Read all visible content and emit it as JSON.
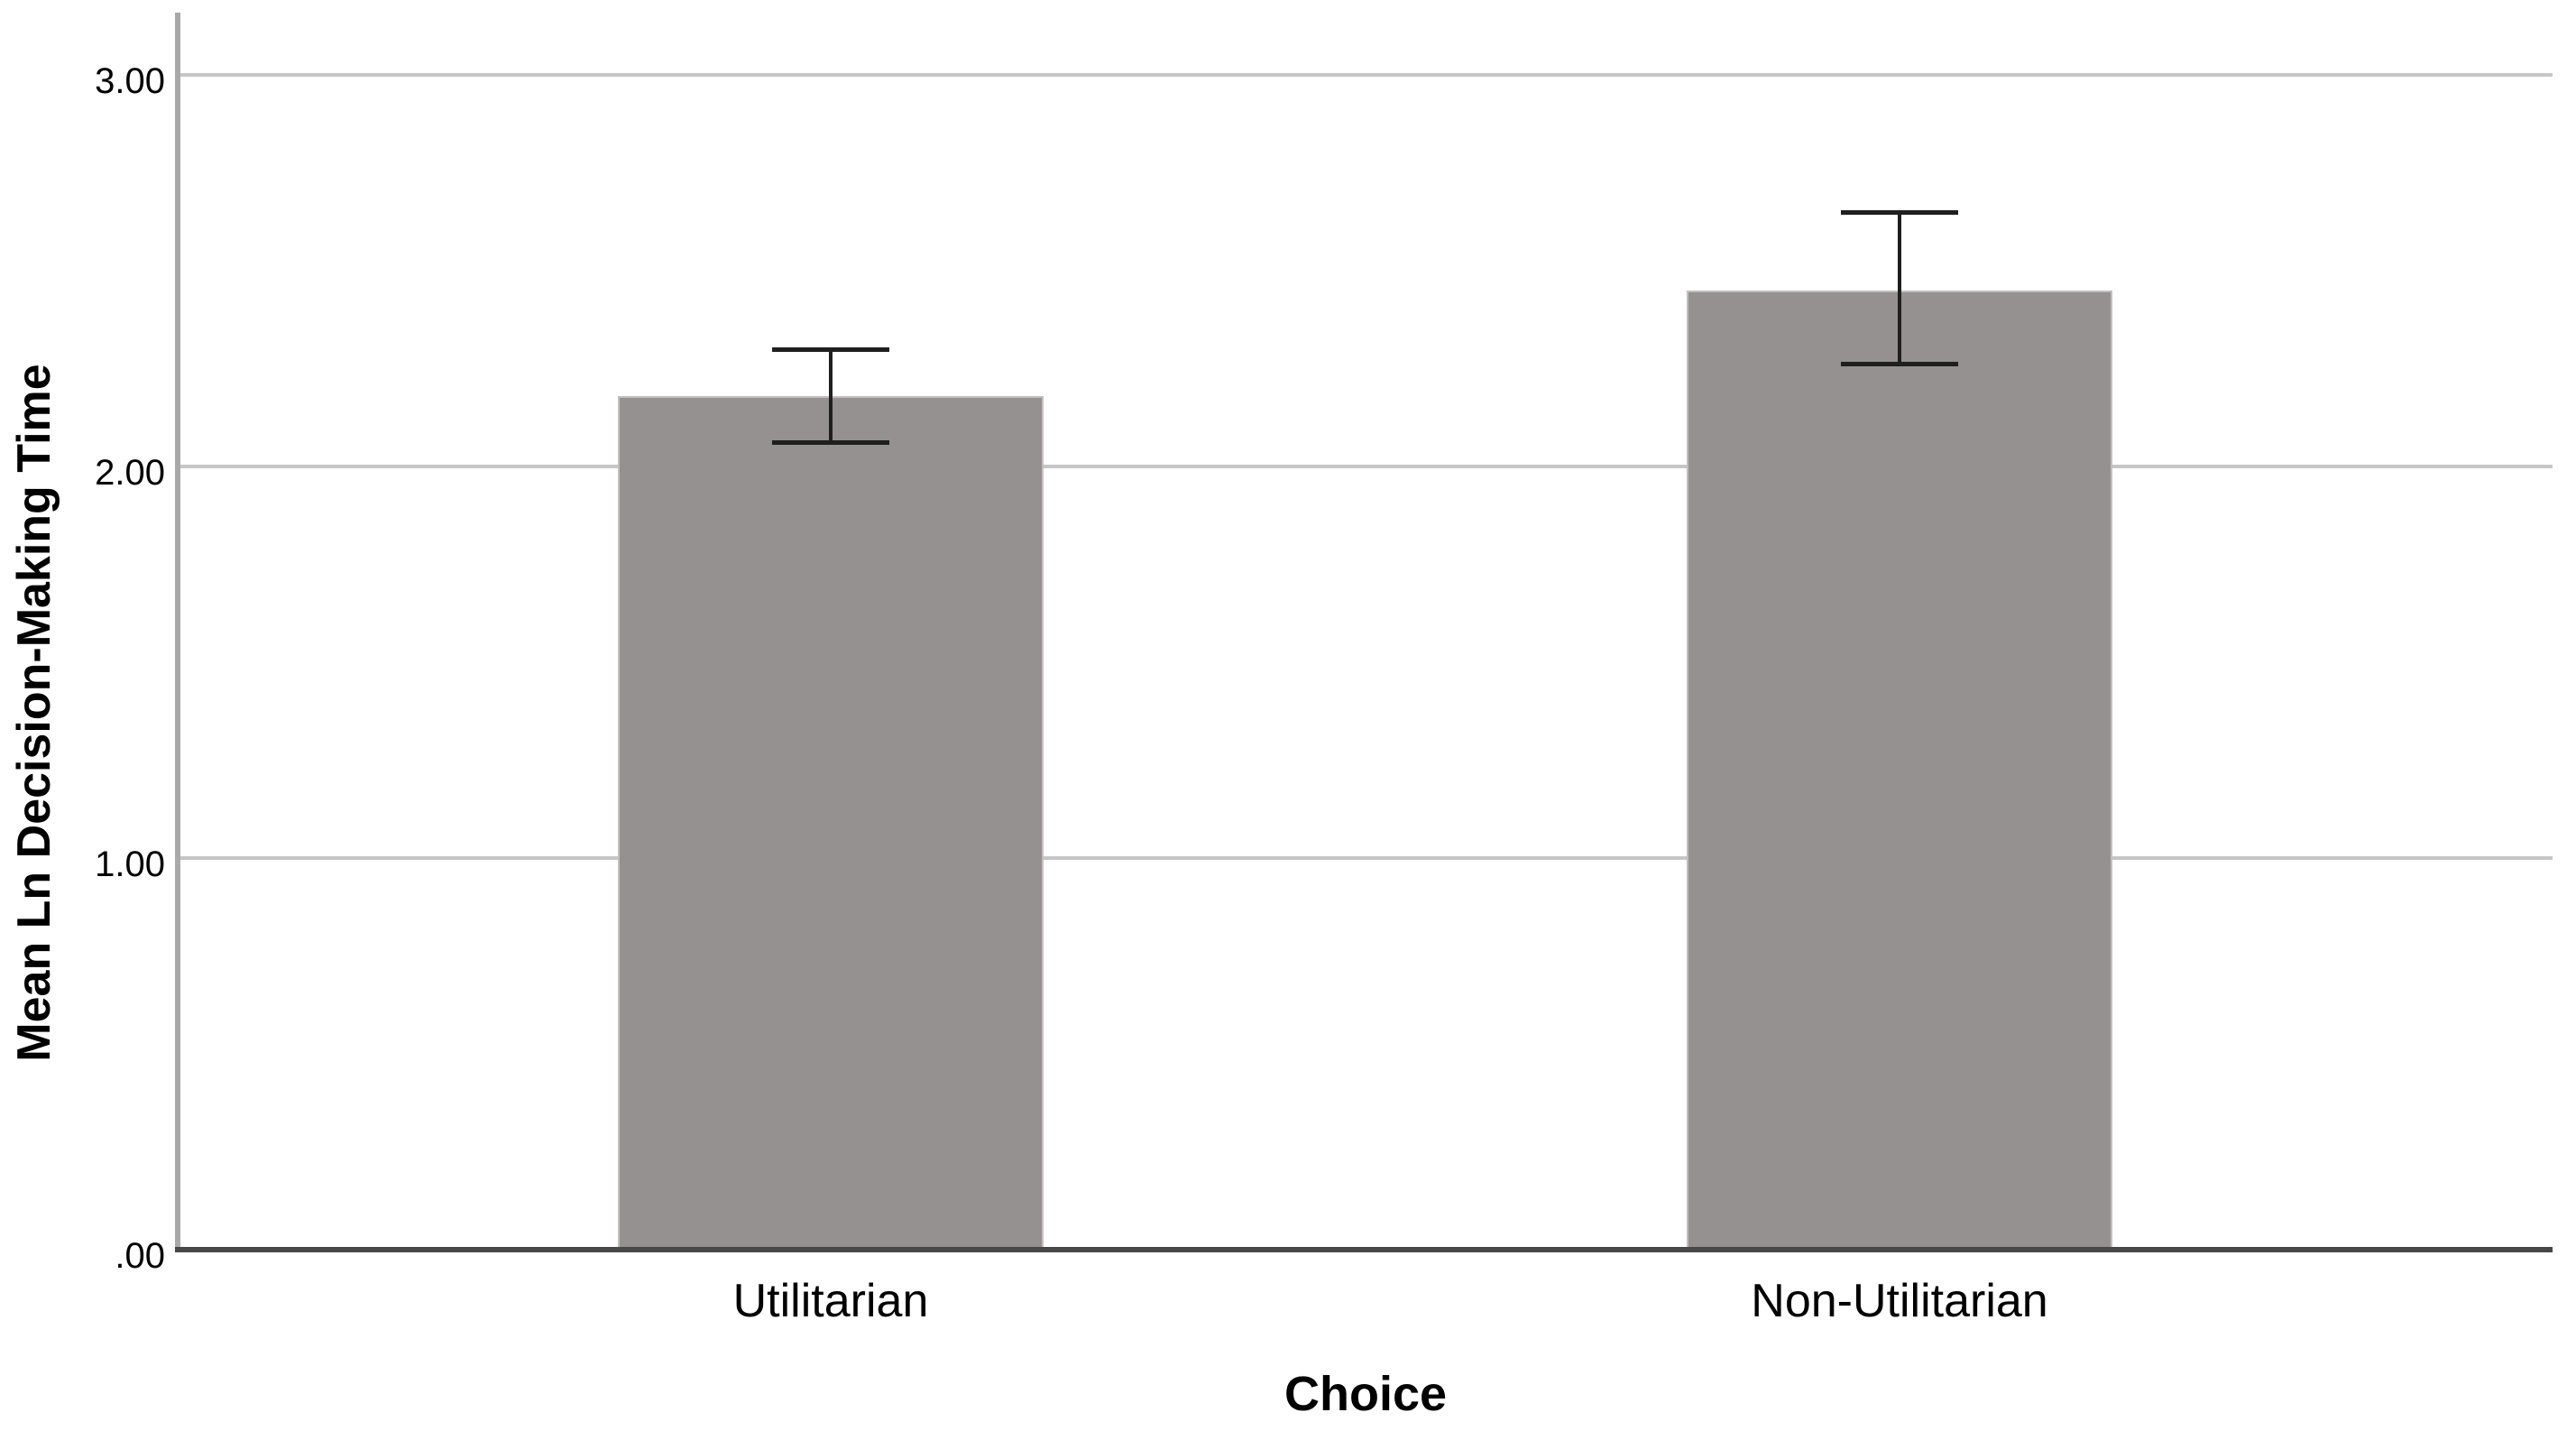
{
  "chart_data": {
    "type": "bar",
    "title": "",
    "categories": [
      "Utilitarian",
      "Non-Utilitarian"
    ],
    "values": [
      2.18,
      2.45
    ],
    "error_bars": [
      {
        "low": 2.06,
        "high": 2.3
      },
      {
        "low": 2.26,
        "high": 2.65
      }
    ],
    "xlabel": "Choice",
    "ylabel": "Mean Ln Decision-Making Time",
    "ylim": [
      0,
      3.16
    ],
    "yticks": [
      {
        "value": 0,
        "label": ".00"
      },
      {
        "value": 1,
        "label": "1.00"
      },
      {
        "value": 2,
        "label": "2.00"
      },
      {
        "value": 3,
        "label": "3.00"
      }
    ],
    "grid": "horizontal",
    "legend": "none",
    "colors": {
      "background": "#ffffff",
      "bar_fill": "#949190",
      "bar_border": "#c2bfbe",
      "error_bar": "#1f1f1f",
      "gridline": "#c6c6c6",
      "y_axis_line": "#a9a9a9",
      "x_axis_line": "#474747",
      "text": "#000000"
    }
  }
}
